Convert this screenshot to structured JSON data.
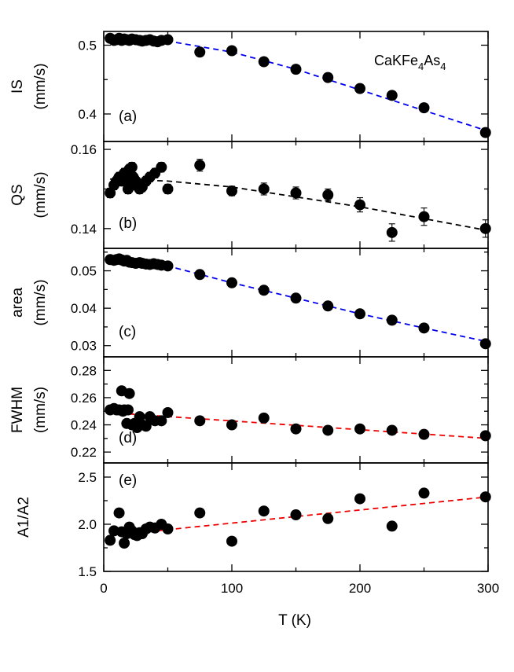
{
  "compound": {
    "main": "CaKFe",
    "sub1": "4",
    "mid": "As",
    "sub2": "4"
  },
  "xaxis_label": "T (K)",
  "chart_data": [
    {
      "type": "scatter",
      "panel_label": "(a)",
      "ylabel_top": "IS",
      "ylabel_bottom": "(mm/s)",
      "xlim": [
        0,
        300
      ],
      "ylim": [
        0.36,
        0.52
      ],
      "yticks": [
        0.4,
        0.5
      ],
      "ytick_labels": [
        "0.4",
        "0.5"
      ],
      "x": [
        5,
        8,
        10,
        12,
        14,
        16,
        18,
        20,
        22,
        25,
        28,
        30,
        33,
        36,
        39,
        42,
        45,
        50,
        75,
        100,
        125,
        150,
        175,
        200,
        225,
        250,
        298
      ],
      "y": [
        0.51,
        0.507,
        0.508,
        0.51,
        0.507,
        0.509,
        0.508,
        0.507,
        0.509,
        0.508,
        0.507,
        0.506,
        0.507,
        0.508,
        0.506,
        0.505,
        0.507,
        0.508,
        0.49,
        0.492,
        0.476,
        0.465,
        0.453,
        0.437,
        0.427,
        0.409,
        0.373
      ],
      "yerr": [],
      "fit": {
        "color": "#0000ee",
        "x": [
          5,
          50,
          100,
          150,
          200,
          250,
          300
        ],
        "y": [
          0.508,
          0.506,
          0.49,
          0.465,
          0.435,
          0.405,
          0.375
        ]
      }
    },
    {
      "type": "scatter",
      "panel_label": "(b)",
      "ylabel_top": "QS",
      "ylabel_bottom": "(mm/s)",
      "xlim": [
        0,
        300
      ],
      "ylim": [
        0.135,
        0.162
      ],
      "yticks": [
        0.14,
        0.16
      ],
      "ytick_labels": [
        "0.14",
        "0.16"
      ],
      "x": [
        5,
        8,
        10,
        12,
        14,
        15,
        16,
        17,
        18,
        19,
        20,
        21,
        22,
        23,
        24,
        25,
        28,
        30,
        33,
        36,
        40,
        45,
        50,
        75,
        100,
        125,
        150,
        175,
        200,
        225,
        250,
        298
      ],
      "y": [
        0.149,
        0.151,
        0.152,
        0.153,
        0.152,
        0.1525,
        0.154,
        0.152,
        0.153,
        0.15,
        0.155,
        0.152,
        0.1555,
        0.153,
        0.151,
        0.152,
        0.15,
        0.1505,
        0.152,
        0.153,
        0.154,
        0.1555,
        0.15,
        0.156,
        0.1495,
        0.15,
        0.149,
        0.1485,
        0.146,
        0.139,
        0.143,
        0.14
      ],
      "yerr": [
        0.0012,
        0.0012,
        0.0012,
        0.0012,
        0.0012,
        0.0012,
        0.0012,
        0.0012,
        0.0012,
        0.0012,
        0.0012,
        0.0012,
        0.0012,
        0.0012,
        0.0012,
        0.0012,
        0.0012,
        0.0012,
        0.0012,
        0.0012,
        0.0012,
        0.0012,
        0.0012,
        0.0015,
        0.0012,
        0.0015,
        0.0015,
        0.0015,
        0.0018,
        0.0022,
        0.0022,
        0.0022
      ],
      "fit": {
        "color": "#000000",
        "x": [
          5,
          50,
          100,
          150,
          200,
          250,
          300
        ],
        "y": [
          0.1525,
          0.152,
          0.1505,
          0.148,
          0.1455,
          0.1425,
          0.1395
        ]
      }
    },
    {
      "type": "scatter",
      "panel_label": "(c)",
      "ylabel_top": "area",
      "ylabel_bottom": "(mm/s)",
      "xlim": [
        0,
        300
      ],
      "ylim": [
        0.027,
        0.056
      ],
      "yticks": [
        0.03,
        0.04,
        0.05
      ],
      "ytick_labels": [
        "0.03",
        "0.04",
        "0.05"
      ],
      "x": [
        5,
        8,
        10,
        12,
        14,
        16,
        18,
        20,
        22,
        25,
        28,
        30,
        33,
        36,
        39,
        42,
        45,
        50,
        75,
        100,
        125,
        150,
        175,
        200,
        225,
        250,
        298
      ],
      "y": [
        0.053,
        0.0528,
        0.053,
        0.0532,
        0.0529,
        0.0526,
        0.0528,
        0.0523,
        0.0522,
        0.052,
        0.0522,
        0.052,
        0.0518,
        0.0517,
        0.0519,
        0.0517,
        0.0515,
        0.0513,
        0.049,
        0.0468,
        0.0448,
        0.0427,
        0.0406,
        0.0385,
        0.0368,
        0.0347,
        0.0305
      ],
      "yerr": [],
      "fit": {
        "color": "#0000ee",
        "x": [
          5,
          50,
          100,
          150,
          200,
          250,
          300
        ],
        "y": [
          0.053,
          0.0513,
          0.0468,
          0.0427,
          0.0385,
          0.0347,
          0.031
        ]
      }
    },
    {
      "type": "scatter",
      "panel_label": "(d)",
      "ylabel_top": "FWHM",
      "ylabel_bottom": "(mm/s)",
      "xlim": [
        0,
        300
      ],
      "ylim": [
        0.212,
        0.29
      ],
      "yticks": [
        0.22,
        0.24,
        0.26,
        0.28
      ],
      "ytick_labels": [
        "0.22",
        "0.24",
        "0.26",
        "0.28"
      ],
      "x": [
        5,
        8,
        10,
        12,
        14,
        15,
        16,
        18,
        19,
        20,
        22,
        24,
        26,
        28,
        30,
        33,
        36,
        40,
        45,
        50,
        75,
        100,
        125,
        150,
        175,
        200,
        225,
        250,
        298
      ],
      "y": [
        0.251,
        0.252,
        0.251,
        0.251,
        0.265,
        0.25,
        0.251,
        0.241,
        0.251,
        0.263,
        0.24,
        0.241,
        0.238,
        0.246,
        0.24,
        0.239,
        0.246,
        0.243,
        0.243,
        0.249,
        0.243,
        0.24,
        0.245,
        0.237,
        0.236,
        0.237,
        0.236,
        0.233,
        0.232
      ],
      "yerr": [],
      "fit": {
        "color": "#ee0000",
        "x": [
          5,
          300
        ],
        "y": [
          0.249,
          0.23
        ]
      }
    },
    {
      "type": "scatter",
      "panel_label": "(e)",
      "ylabel_top": "A1/A2",
      "ylabel_bottom": "",
      "xlim": [
        0,
        300
      ],
      "ylim": [
        1.5,
        2.65
      ],
      "yticks": [
        1.5,
        2.0,
        2.5
      ],
      "ytick_labels": [
        "1.5",
        "2.0",
        "2.5"
      ],
      "x": [
        5,
        8,
        12,
        14,
        16,
        18,
        20,
        22,
        24,
        26,
        28,
        30,
        33,
        36,
        40,
        45,
        50,
        75,
        100,
        125,
        150,
        175,
        200,
        225,
        250,
        298
      ],
      "y": [
        1.83,
        1.93,
        2.12,
        1.92,
        1.8,
        1.9,
        1.97,
        1.93,
        1.89,
        1.88,
        1.91,
        1.9,
        1.95,
        1.97,
        1.96,
        2.0,
        1.95,
        2.12,
        1.82,
        2.14,
        2.1,
        2.06,
        2.27,
        1.98,
        2.33,
        2.29
      ],
      "yerr": [],
      "fit": {
        "color": "#ee0000",
        "x": [
          5,
          300
        ],
        "y": [
          1.88,
          2.29
        ]
      }
    }
  ],
  "x_ticks": [
    0,
    100,
    200,
    300
  ],
  "x_tick_labels": [
    "0",
    "100",
    "200",
    "300"
  ]
}
